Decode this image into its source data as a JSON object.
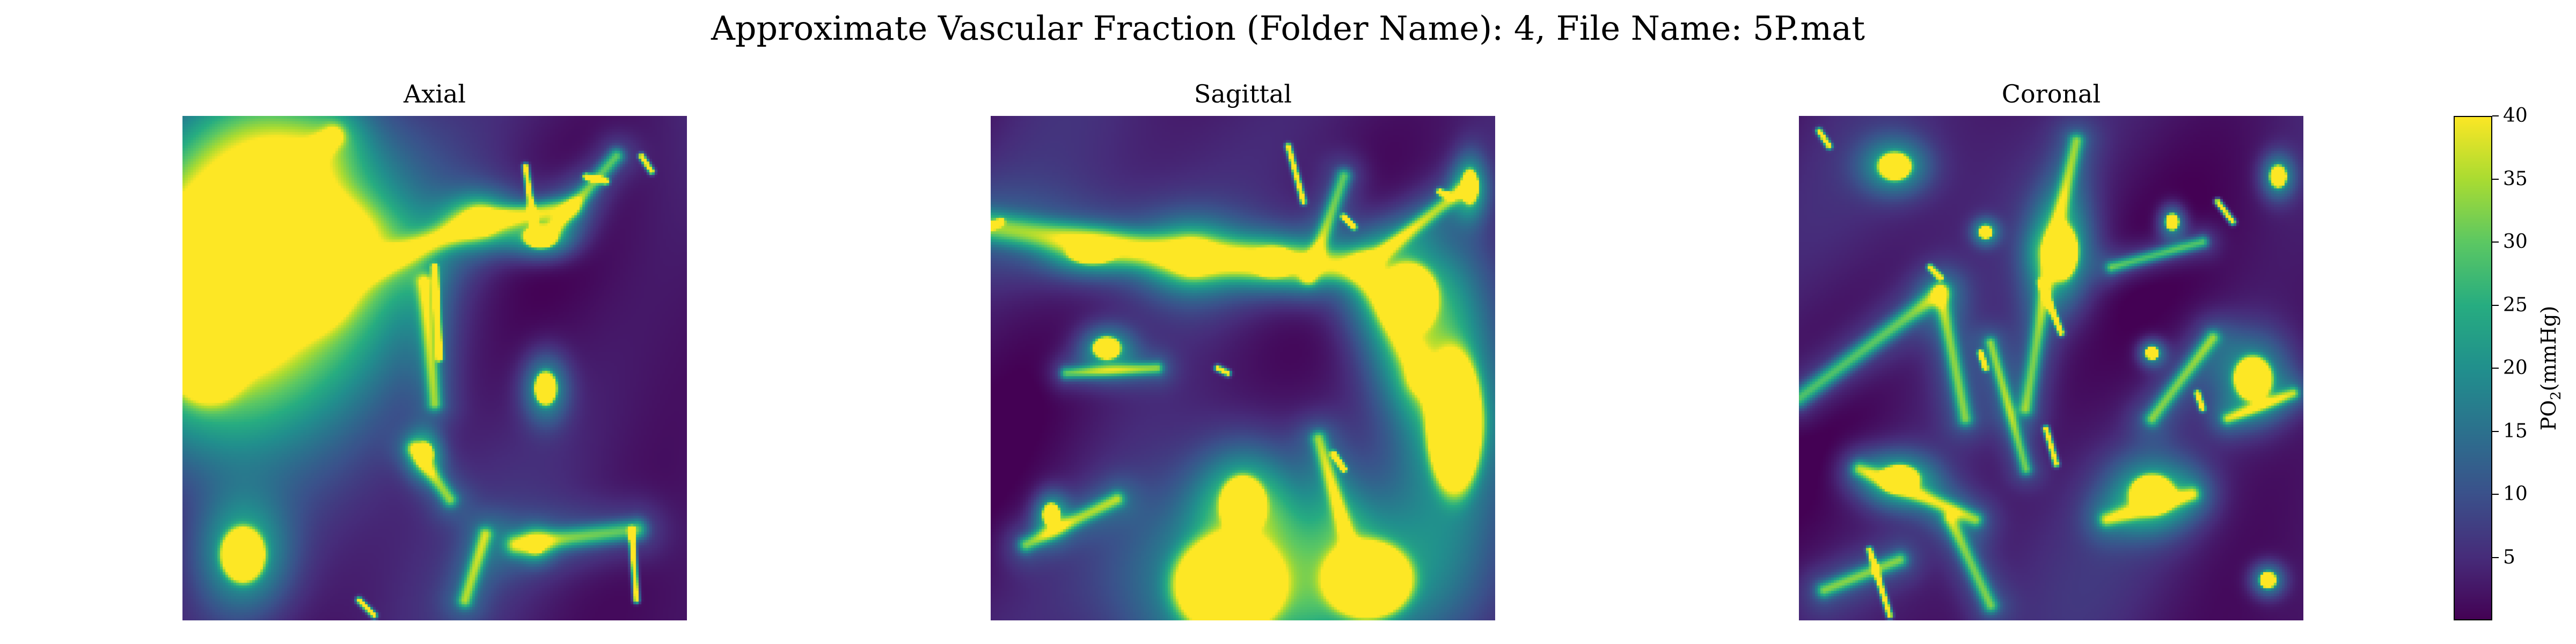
{
  "figure": {
    "suptitle": "Approximate Vascular Fraction (Folder Name): 4, File Name: 5P.mat"
  },
  "chart_data": {
    "type": "heatmap",
    "colormap": "viridis",
    "color_range": [
      0,
      40
    ],
    "panels": [
      {
        "title": "Axial"
      },
      {
        "title": "Sagittal"
      },
      {
        "title": "Coronal"
      }
    ],
    "colorbar": {
      "label_main": "PO",
      "label_sub": "2",
      "label_unit": "(mmHg)",
      "ticks": [
        5,
        10,
        15,
        20,
        25,
        30,
        35,
        40
      ],
      "tick_labels": [
        "5",
        "10",
        "15",
        "20",
        "25",
        "30",
        "35",
        "40"
      ]
    }
  }
}
